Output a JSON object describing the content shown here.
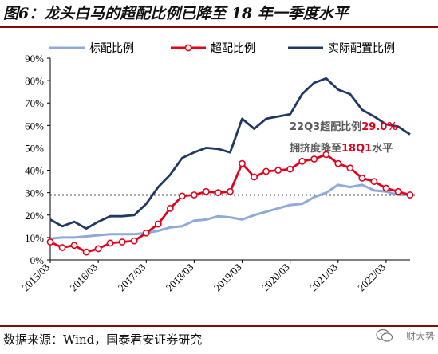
{
  "figure": {
    "title": "图6：龙头白马的超配比例已降至 18 年一季度水平",
    "source": "数据来源：Wind，国泰君安证券研究",
    "watermark": "一财大势"
  },
  "annotations": {
    "line1_prefix": "22Q3超配比例",
    "line1_value": "29.0%",
    "line2_prefix": "拥挤度降至",
    "line2_value": "18Q1",
    "line2_suffix": "水平"
  },
  "colors": {
    "benchmark": "#8eaadb",
    "overweight": "#e3001b",
    "actual": "#1f3864",
    "reference": "#555555",
    "annotation_text": "#595959",
    "annotation_value": "#e3001b"
  },
  "chart_data": {
    "type": "line",
    "x": [
      "2015Q1",
      "2015Q2",
      "2015Q3",
      "2015Q4",
      "2016Q1",
      "2016Q2",
      "2016Q3",
      "2016Q4",
      "2017Q1",
      "2017Q2",
      "2017Q3",
      "2017Q4",
      "2018Q1",
      "2018Q2",
      "2018Q3",
      "2018Q4",
      "2019Q1",
      "2019Q2",
      "2019Q3",
      "2019Q4",
      "2020Q1",
      "2020Q2",
      "2020Q3",
      "2020Q4",
      "2021Q1",
      "2021Q2",
      "2021Q3",
      "2021Q4",
      "2022Q1",
      "2022Q2",
      "2022Q3"
    ],
    "x_tick_labels": [
      "2015/03",
      "2016/03",
      "2017/03",
      "2018/03",
      "2019/03",
      "2020/03",
      "2021/03",
      "2022/03"
    ],
    "ylim": [
      0,
      90
    ],
    "y_ticks": [
      0,
      10,
      20,
      30,
      40,
      50,
      60,
      70,
      80,
      90
    ],
    "y_tick_format": "%",
    "reference_line": 29.0,
    "legend": [
      "标配比例",
      "超配比例",
      "实际配置比例"
    ],
    "legend_position": "top",
    "series": [
      {
        "name": "标配比例",
        "color_key": "benchmark",
        "values": [
          9.5,
          10,
          10,
          10.5,
          11,
          11.5,
          11.5,
          11.5,
          12,
          13,
          14.5,
          15,
          17.5,
          18,
          19.5,
          19,
          18,
          20,
          21.5,
          23,
          24.5,
          25,
          28,
          30,
          33.5,
          32.5,
          33.5,
          31,
          30.5,
          29,
          29
        ]
      },
      {
        "name": "超配比例",
        "color_key": "overweight",
        "markers": true,
        "values": [
          8,
          5.5,
          6.5,
          3.5,
          5,
          7.5,
          8,
          8.5,
          12,
          16,
          23,
          28.5,
          29,
          30.5,
          30,
          30.5,
          43,
          37,
          39.5,
          40,
          40.5,
          44,
          45,
          47,
          43,
          41,
          36.5,
          35,
          32,
          30.5,
          29
        ]
      },
      {
        "name": "实际配置比例",
        "color_key": "actual",
        "values": [
          18,
          15,
          17,
          14,
          17,
          19.5,
          19.5,
          20,
          25,
          32.5,
          38,
          45.5,
          48,
          50,
          49.5,
          48,
          63,
          58.5,
          63,
          64,
          65,
          74,
          79,
          81,
          76,
          74,
          67,
          64,
          60.5,
          59.5,
          56
        ]
      }
    ]
  }
}
